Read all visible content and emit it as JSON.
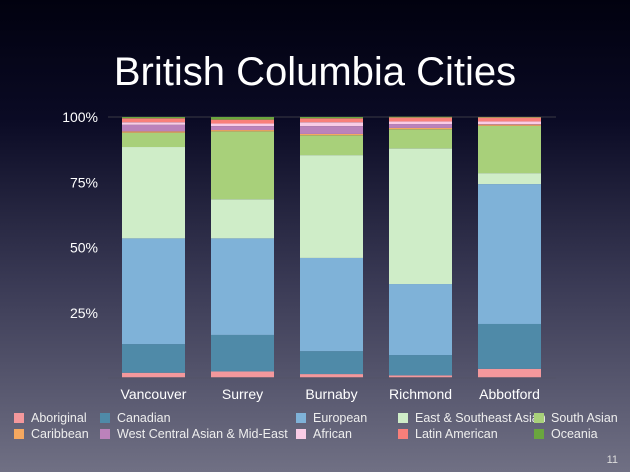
{
  "slide_number": "11",
  "chart_data": {
    "type": "bar",
    "stacked": "percent",
    "title": "British Columbia Cities",
    "xlabel": "",
    "ylabel": "",
    "ylim": [
      0,
      100
    ],
    "yticks": [
      "25%",
      "50%",
      "75%",
      "100%"
    ],
    "categories": [
      "Vancouver",
      "Surrey",
      "Burnaby",
      "Richmond",
      "Abbotford"
    ],
    "legend_position": "bottom",
    "series": [
      {
        "name": "Aboriginal",
        "color": "#f4989c",
        "values": [
          2,
          2.5,
          1.5,
          1,
          3.5
        ]
      },
      {
        "name": "Canadian",
        "color": "#4f8aa8",
        "values": [
          11,
          14,
          8.8,
          7.8,
          17.2
        ]
      },
      {
        "name": "European",
        "color": "#7fb2d8",
        "values": [
          40.5,
          37,
          35.7,
          27.2,
          53.6
        ]
      },
      {
        "name": "East & Southeast Asian",
        "color": "#cfedc8",
        "values": [
          35,
          15,
          39.4,
          52,
          4.2
        ]
      },
      {
        "name": "South Asian",
        "color": "#a8d07a",
        "values": [
          5.5,
          26,
          7.6,
          7.3,
          18.1
        ]
      },
      {
        "name": "Caribbean",
        "color": "#f4a860",
        "values": [
          0.5,
          0.5,
          0.5,
          0.5,
          0.5
        ]
      },
      {
        "name": "West Central Asian & Mid-East",
        "color": "#bb82bb",
        "values": [
          2.5,
          1.5,
          3,
          1.5,
          0.2
        ]
      },
      {
        "name": "African",
        "color": "#f9cce6",
        "values": [
          1,
          1,
          1.5,
          1,
          1
        ]
      },
      {
        "name": "Latin American",
        "color": "#f97f7a",
        "values": [
          1.5,
          1.5,
          1.5,
          1.5,
          1.5
        ]
      },
      {
        "name": "Oceania",
        "color": "#6aa63e",
        "values": [
          0.5,
          1,
          0.5,
          0.3,
          0.2
        ]
      }
    ]
  }
}
